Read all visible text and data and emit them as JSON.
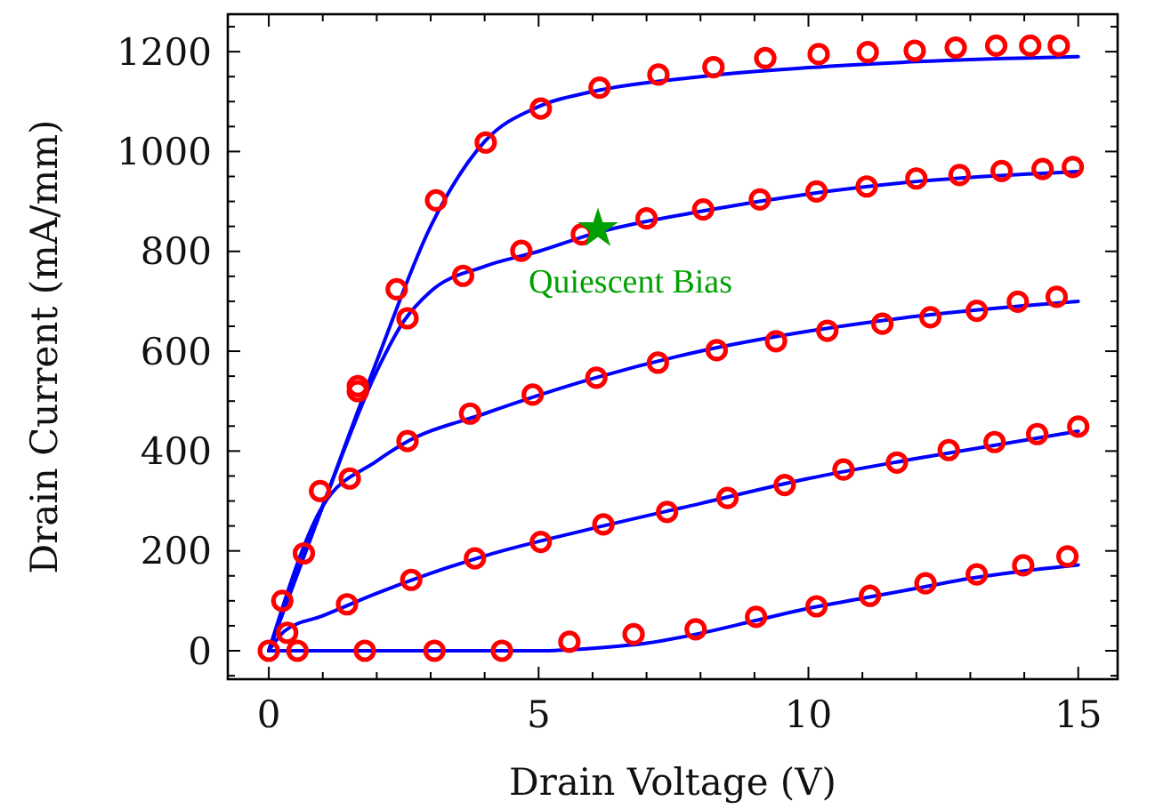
{
  "chart_data": {
    "type": "line",
    "xlabel": "Drain Voltage (V)",
    "ylabel": "Drain Current (mA/mm)",
    "xlim": [
      -0.76,
      15.73
    ],
    "ylim": [
      -57,
      1275
    ],
    "xticks": [
      0,
      5,
      10,
      15
    ],
    "yticks": [
      0,
      200,
      400,
      600,
      800,
      1000,
      1200
    ],
    "grid": false,
    "series": [
      {
        "color": "#0000ff",
        "marker": "none",
        "line_style": "solid",
        "x": [
          0,
          1,
          2,
          3,
          4,
          5,
          6,
          8,
          10,
          12,
          15
        ],
        "values": [
          0,
          290,
          580,
          850,
          1020,
          1090,
          1120,
          1150,
          1168,
          1180,
          1190
        ]
      },
      {
        "color": "#0000ff",
        "marker": "none",
        "line_style": "solid",
        "x": [
          0,
          1,
          2,
          2.5,
          3,
          4,
          5,
          6,
          8,
          10,
          12,
          15
        ],
        "values": [
          0,
          290,
          560,
          660,
          720,
          770,
          800,
          835,
          880,
          915,
          940,
          960
        ]
      },
      {
        "color": "#0000ff",
        "marker": "none",
        "line_style": "solid",
        "x": [
          0,
          1,
          2,
          2.5,
          4,
          6,
          8,
          10,
          12,
          15
        ],
        "values": [
          0,
          290,
          380,
          415,
          475,
          545,
          600,
          640,
          670,
          700
        ]
      },
      {
        "color": "#0000ff",
        "marker": "none",
        "line_style": "solid",
        "x": [
          0,
          0.3,
          1,
          2,
          3,
          4,
          6,
          8,
          10,
          12,
          15
        ],
        "values": [
          0,
          40,
          70,
          115,
          155,
          190,
          245,
          295,
          345,
          385,
          440
        ]
      },
      {
        "color": "#0000ff",
        "marker": "none",
        "line_style": "solid",
        "x": [
          0,
          5,
          6,
          7,
          8,
          9,
          10,
          11,
          12,
          13,
          14,
          15
        ],
        "values": [
          0,
          0,
          5,
          15,
          35,
          60,
          85,
          105,
          125,
          145,
          160,
          172
        ]
      },
      {
        "type": "scatter",
        "color": "#ff0000",
        "marker": "circle",
        "x": [
          0,
          0.25,
          0.65,
          0.95,
          1.65,
          2.37,
          3.1,
          4.02,
          5.04,
          6.13,
          7.22,
          8.24,
          9.2,
          10.19,
          11.1,
          11.97,
          12.73,
          13.48,
          14.11,
          14.64
        ],
        "values": [
          0,
          100,
          195,
          320,
          530,
          724,
          902,
          1018,
          1086,
          1128,
          1154,
          1169,
          1187,
          1195,
          1199,
          1202,
          1208,
          1212,
          1212,
          1212
        ]
      },
      {
        "type": "scatter",
        "color": "#ff0000",
        "marker": "circle",
        "x": [
          1.5,
          1.65,
          2.57,
          3.6,
          4.68,
          5.8,
          7.0,
          8.05,
          9.1,
          10.15,
          11.08,
          12.0,
          12.8,
          13.58,
          14.34,
          14.9
        ],
        "values": [
          345,
          520,
          666,
          751,
          801,
          834,
          866,
          884,
          904,
          920,
          930,
          946,
          953,
          961,
          965,
          969
        ]
      },
      {
        "type": "scatter",
        "color": "#ff0000",
        "marker": "circle",
        "x": [
          2.57,
          3.73,
          4.89,
          6.07,
          7.21,
          8.3,
          9.4,
          10.35,
          11.37,
          12.26,
          13.12,
          13.88,
          14.6
        ],
        "values": [
          420,
          475,
          513,
          547,
          577,
          602,
          620,
          641,
          655,
          668,
          681,
          699,
          709
        ]
      },
      {
        "type": "scatter",
        "color": "#ff0000",
        "marker": "circle",
        "x": [
          0.34,
          1.45,
          2.64,
          3.82,
          5.04,
          6.2,
          7.38,
          8.5,
          9.56,
          10.65,
          11.64,
          12.6,
          13.45,
          14.24,
          15.0
        ],
        "values": [
          36,
          93,
          142,
          185,
          218,
          253,
          278,
          306,
          332,
          363,
          377,
          402,
          418,
          434,
          449
        ]
      },
      {
        "type": "scatter",
        "color": "#ff0000",
        "marker": "circle",
        "x": [
          0.53,
          1.78,
          3.07,
          4.32,
          5.57,
          6.76,
          7.91,
          9.03,
          10.15,
          11.14,
          12.17,
          13.12,
          13.98,
          14.8
        ],
        "values": [
          0,
          0,
          0,
          0,
          18,
          33,
          43,
          68,
          89,
          110,
          135,
          153,
          171,
          189
        ]
      },
      {
        "name": "Quiescent Bias",
        "type": "scatter",
        "color": "#00a000",
        "marker": "star",
        "x": [
          6.1
        ],
        "values": [
          845
        ]
      }
    ]
  }
}
